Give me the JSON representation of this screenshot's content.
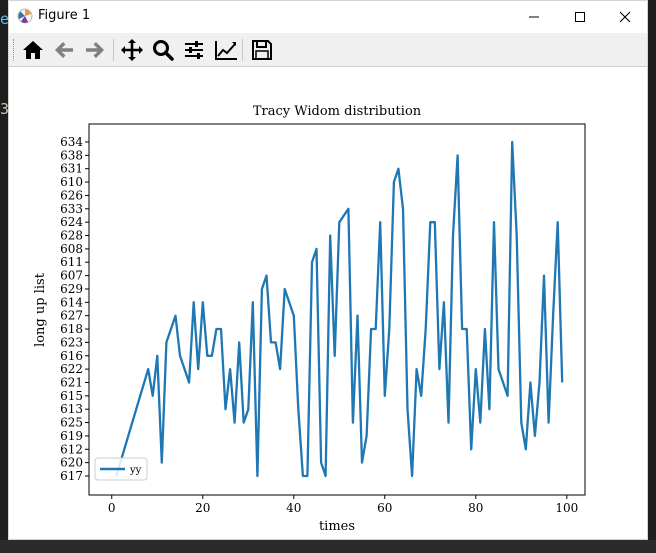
{
  "window": {
    "title": "Figure 1"
  },
  "background_editor": {
    "left_chars": [
      "e",
      "3"
    ]
  },
  "toolbar": {
    "buttons": [
      "home-icon",
      "back-arrow-icon",
      "forward-arrow-icon",
      "pan-move-icon",
      "zoom-magnifier-icon",
      "configure-subplots-icon",
      "edit-axis-icon",
      "save-floppy-icon"
    ]
  },
  "colors": {
    "line": "#1f77b4",
    "window_bg": "#ffffff",
    "toolbar_bg": "#f0f0f0"
  },
  "chart_data": {
    "type": "line",
    "title": "Tracy Widom distribution",
    "xlabel": "times",
    "ylabel": "long up list",
    "x_ticks": [
      "0",
      "20",
      "40",
      "60",
      "80",
      "100"
    ],
    "xlim": [
      -5,
      104
    ],
    "y_categories": [
      "617",
      "620",
      "612",
      "619",
      "625",
      "613",
      "615",
      "621",
      "622",
      "616",
      "623",
      "618",
      "627",
      "614",
      "629",
      "607",
      "611",
      "608",
      "628",
      "624",
      "633",
      "626",
      "610",
      "631",
      "638",
      "634"
    ],
    "legend": {
      "entries": [
        "yy"
      ],
      "position": "lower left"
    },
    "grid": false,
    "series": [
      {
        "name": "yy",
        "x": [
          1,
          8,
          9,
          10,
          11,
          12,
          14,
          15,
          17,
          18,
          19,
          20,
          21,
          22,
          23,
          24,
          25,
          26,
          27,
          28,
          29,
          30,
          31,
          32,
          33,
          34,
          35,
          36,
          37,
          38,
          40,
          41,
          42,
          43,
          44,
          45,
          46,
          47,
          48,
          49,
          50,
          52,
          53,
          54,
          55,
          56,
          57,
          58,
          59,
          60,
          61,
          62,
          63,
          64,
          65,
          66,
          67,
          68,
          69,
          70,
          71,
          72,
          73,
          74,
          75,
          76,
          77,
          78,
          79,
          80,
          81,
          82,
          83,
          84,
          85,
          87,
          88,
          89,
          90,
          91,
          92,
          93,
          94,
          95,
          96,
          97,
          98,
          99
        ],
        "y": [
          "617",
          "622",
          "615",
          "616",
          "620",
          "623",
          "627",
          "616",
          "621",
          "614",
          "622",
          "614",
          "616",
          "616",
          "618",
          "618",
          "613",
          "622",
          "625",
          "623",
          "625",
          "613",
          "614",
          "617",
          "629",
          "607",
          "623",
          "623",
          "622",
          "629",
          "627",
          "613",
          "617",
          "617",
          "611",
          "608",
          "620",
          "617",
          "628",
          "616",
          "624",
          "633",
          "625",
          "627",
          "620",
          "619",
          "618",
          "618",
          "624",
          "615",
          "618",
          "610",
          "631",
          "633",
          "613",
          "617",
          "622",
          "615",
          "618",
          "624",
          "624",
          "622",
          "614",
          "625",
          "628",
          "638",
          "618",
          "618",
          "612",
          "622",
          "625",
          "618",
          "613",
          "624",
          "622",
          "615",
          "634",
          "628",
          "625",
          "612",
          "621",
          "619",
          "621",
          "607",
          "625",
          "627",
          "624",
          "621"
        ]
      }
    ]
  }
}
